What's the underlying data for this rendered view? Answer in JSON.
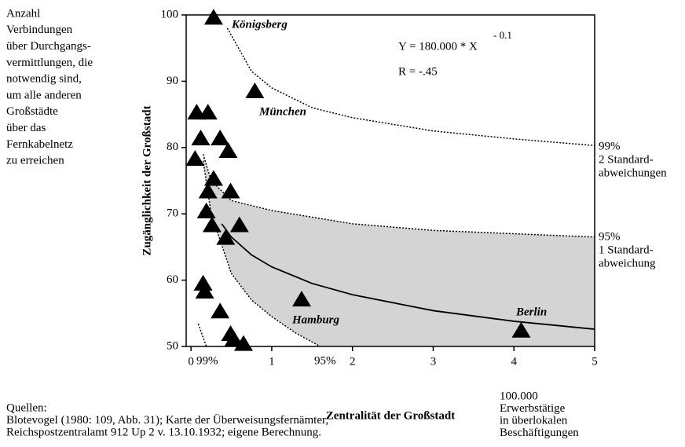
{
  "chart_data": {
    "type": "scatter",
    "xlabel": "Zentralität der Großstadt",
    "ylabel": "Zugänglichkeit der Großstadt",
    "xlim": [
      -0.06,
      5
    ],
    "ylim": [
      50,
      100
    ],
    "xticks": [
      0,
      1,
      2,
      3,
      4,
      5
    ],
    "yticks": [
      50,
      60,
      70,
      80,
      90,
      100
    ],
    "color": "#000000",
    "shade_color": "#d4d4d4",
    "points": {
      "x": [
        0.28,
        0.79,
        0.07,
        0.21,
        0.12,
        0.36,
        0.46,
        0.05,
        0.28,
        0.21,
        0.49,
        0.19,
        0.26,
        0.6,
        0.43,
        0.15,
        0.17,
        0.36,
        0.49,
        0.53,
        0.65,
        1.37,
        4.09
      ],
      "y": [
        99.6,
        88.5,
        85.3,
        85.3,
        81.4,
        81.4,
        79.5,
        78.3,
        75.3,
        73.4,
        73.4,
        70.4,
        68.3,
        68.3,
        66.4,
        59.5,
        58.3,
        55.3,
        51.9,
        51.1,
        50.4,
        57.1,
        52.4
      ]
    },
    "curves": {
      "fit": {
        "x": [
          0.38,
          0.5,
          0.75,
          1,
          1.5,
          2,
          3,
          4,
          5
        ],
        "y": [
          68.5,
          66.5,
          63.8,
          62,
          59.5,
          57.8,
          55.4,
          53.8,
          52.6
        ]
      },
      "upper95": {
        "x": [
          0.15,
          0.25,
          0.5,
          1,
          2,
          3,
          4,
          5
        ],
        "y": [
          79,
          75,
          72,
          70.5,
          68.5,
          67.5,
          67,
          66.5
        ]
      },
      "lower95": {
        "x": [
          0.15,
          0.25,
          0.5,
          0.75,
          1,
          1.3,
          1.6
        ],
        "y": [
          78,
          70,
          61,
          57,
          54.5,
          52,
          50
        ]
      },
      "upper99": {
        "x": [
          0.45,
          0.75,
          1,
          1.5,
          2,
          3,
          4,
          5
        ],
        "y": [
          98,
          91.5,
          89,
          86,
          84.5,
          82.5,
          81.3,
          80.3
        ]
      },
      "lower99": {
        "x": [
          0.09,
          0.14,
          0.19
        ],
        "y": [
          53.4,
          51.7,
          50
        ]
      }
    },
    "city_labels": [
      "Königsberg",
      "München",
      "Hamburg",
      "Berlin"
    ],
    "equation": "Y = 180.000 * X",
    "exponent": "- 0.1",
    "r_value": "R = -.45",
    "left_note": [
      "Anzahl",
      "Verbindungen",
      "über Durchgangs-",
      "vermittlungen, die",
      "notwendig sind,",
      "um alle anderen",
      "Großstädte",
      "über das",
      "Fernkabelnetz",
      "zu erreichen"
    ],
    "band99_label": [
      "99%",
      "2 Standard-",
      "abweichungen"
    ],
    "band95_label": [
      "95%",
      "1 Standard-",
      "abweichung"
    ],
    "inner_labels": [
      "99%",
      "95%"
    ],
    "x_unit": [
      "100.000",
      "Erwerbstätige",
      "in überlokalen",
      "Beschäftigungen"
    ],
    "sources": [
      "Quellen:",
      "Blotevogel (1980: 109, Abb. 31); Karte der Überweisungsfernämter,",
      "Reichspostzentralamt 912 Up 2 v. 13.10.1932; eigene Berechnung."
    ]
  }
}
